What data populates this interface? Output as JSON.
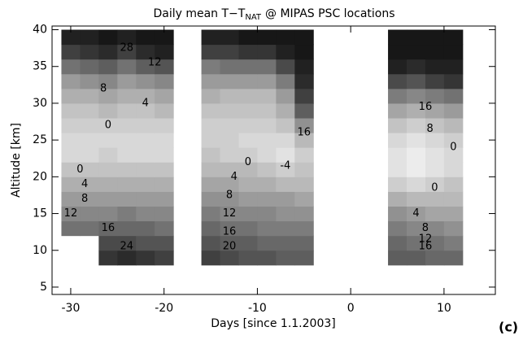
{
  "chart_data": {
    "type": "contour",
    "title": "Daily mean T−T",
    "title_subscript": "NAT",
    "title_end": "@ MIPAS PSC locations",
    "xlabel": "Days [since 1.1.2003]",
    "ylabel": "Altitude [km]",
    "panel_label": "(c)",
    "xlim": [
      -32,
      15.5
    ],
    "ylim": [
      4,
      40.5
    ],
    "xticks": [
      -30,
      -20,
      -10,
      0,
      10
    ],
    "yticks": [
      5,
      10,
      15,
      20,
      25,
      30,
      35,
      40
    ],
    "colors": [
      "#ececec",
      "#171717"
    ],
    "x": [
      -30,
      -28,
      -26,
      -24,
      -22,
      -20,
      -15,
      -13,
      -11,
      -9,
      -7,
      -5,
      5,
      7,
      9,
      11
    ],
    "y": [
      9,
      11,
      13,
      15,
      17,
      19,
      21,
      23,
      25,
      27,
      29,
      31,
      33,
      35,
      37,
      39
    ],
    "z": [
      [
        null,
        null,
        28,
        30,
        28,
        26,
        26,
        24,
        22,
        22,
        20,
        20,
        20,
        20,
        18,
        18
      ],
      [
        null,
        null,
        24,
        24,
        22,
        22,
        22,
        20,
        20,
        18,
        18,
        18,
        18,
        16,
        16,
        14
      ],
      [
        16,
        16,
        18,
        18,
        18,
        16,
        18,
        16,
        16,
        14,
        14,
        14,
        14,
        12,
        12,
        10
      ],
      [
        12,
        12,
        12,
        14,
        12,
        12,
        14,
        12,
        12,
        12,
        10,
        10,
        10,
        8,
        6,
        6
      ],
      [
        8,
        8,
        8,
        8,
        8,
        8,
        10,
        10,
        8,
        8,
        8,
        6,
        4,
        2,
        2,
        2
      ],
      [
        4,
        4,
        4,
        4,
        4,
        4,
        6,
        6,
        4,
        4,
        2,
        2,
        -2,
        -4,
        -2,
        0
      ],
      [
        0,
        0,
        0,
        0,
        0,
        0,
        2,
        2,
        2,
        0,
        -2,
        0,
        -6,
        -8,
        -6,
        -4
      ],
      [
        -4,
        -4,
        -2,
        -4,
        -4,
        -4,
        0,
        -2,
        -2,
        -4,
        -6,
        -2,
        -6,
        -8,
        -6,
        -4
      ],
      [
        -4,
        -4,
        -4,
        -4,
        -4,
        -4,
        -2,
        -2,
        -4,
        -4,
        -4,
        2,
        -4,
        -6,
        -4,
        -2
      ],
      [
        -2,
        -2,
        -2,
        -2,
        -2,
        -2,
        -2,
        -2,
        -2,
        -2,
        0,
        10,
        0,
        -2,
        0,
        2
      ],
      [
        0,
        0,
        2,
        0,
        0,
        2,
        0,
        0,
        0,
        0,
        4,
        20,
        6,
        4,
        6,
        8
      ],
      [
        4,
        4,
        6,
        4,
        4,
        6,
        4,
        2,
        2,
        2,
        8,
        26,
        14,
        12,
        14,
        16
      ],
      [
        8,
        10,
        12,
        8,
        10,
        12,
        8,
        8,
        8,
        8,
        14,
        30,
        24,
        22,
        26,
        28
      ],
      [
        16,
        18,
        20,
        16,
        20,
        22,
        14,
        16,
        16,
        16,
        24,
        32,
        32,
        30,
        32,
        32
      ],
      [
        26,
        28,
        30,
        26,
        30,
        32,
        26,
        26,
        28,
        28,
        32,
        34,
        34,
        34,
        34,
        34
      ],
      [
        32,
        32,
        34,
        32,
        34,
        34,
        32,
        32,
        34,
        34,
        34,
        34,
        34,
        34,
        34,
        34
      ]
    ],
    "contour_labels": [
      {
        "level": 28,
        "x": -24,
        "y": 37.5
      },
      {
        "level": 12,
        "x": -21,
        "y": 35.5
      },
      {
        "level": 8,
        "x": -26.5,
        "y": 32
      },
      {
        "level": 4,
        "x": -22,
        "y": 30
      },
      {
        "level": 0,
        "x": -26,
        "y": 27
      },
      {
        "level": 0,
        "x": -29,
        "y": 21
      },
      {
        "level": 4,
        "x": -28.5,
        "y": 19
      },
      {
        "level": 8,
        "x": -28.5,
        "y": 17
      },
      {
        "level": 12,
        "x": -30,
        "y": 15
      },
      {
        "level": 16,
        "x": -26,
        "y": 13
      },
      {
        "level": 24,
        "x": -24,
        "y": 10.5
      },
      {
        "level": 20,
        "x": -13,
        "y": 10.5
      },
      {
        "level": 16,
        "x": -13,
        "y": 12.5
      },
      {
        "level": 12,
        "x": -13,
        "y": 15
      },
      {
        "level": 8,
        "x": -13,
        "y": 17.5
      },
      {
        "level": 4,
        "x": -12.5,
        "y": 20
      },
      {
        "level": 0,
        "x": -11,
        "y": 22
      },
      {
        "level": -4,
        "x": -7,
        "y": 21.5
      },
      {
        "level": 16,
        "x": -5,
        "y": 26
      },
      {
        "level": 16,
        "x": 8,
        "y": 29.5
      },
      {
        "level": 8,
        "x": 8.5,
        "y": 26.5
      },
      {
        "level": 0,
        "x": 11,
        "y": 24
      },
      {
        "level": 0,
        "x": 9,
        "y": 18.5
      },
      {
        "level": 4,
        "x": 7,
        "y": 15
      },
      {
        "level": 8,
        "x": 8,
        "y": 13
      },
      {
        "level": 12,
        "x": 8,
        "y": 11.5
      },
      {
        "level": 16,
        "x": 8,
        "y": 10.5
      }
    ]
  }
}
